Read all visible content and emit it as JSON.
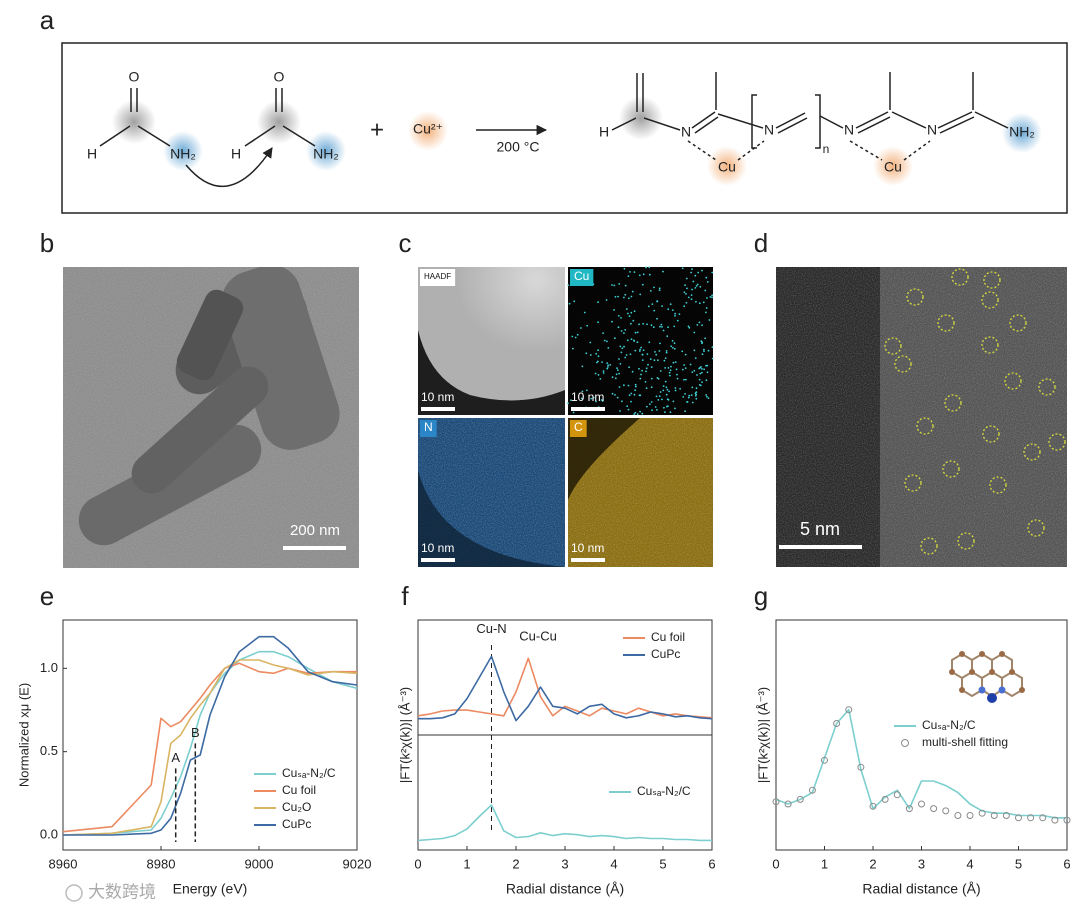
{
  "panel_labels": [
    "a",
    "b",
    "c",
    "d",
    "e",
    "f",
    "g"
  ],
  "scheme": {
    "labels": [
      "O",
      "H",
      "NH₂",
      "O",
      "H",
      "NH₂",
      "+",
      "Cu²⁺",
      "200 °C",
      "H",
      "N",
      "N",
      "n",
      "N",
      "N",
      "NH₂",
      "Cu",
      "Cu"
    ]
  },
  "tem": {
    "scale_bar": "200 nm"
  },
  "mapping": {
    "tiles": [
      {
        "label": "HAADF",
        "scale_bar": "10 nm"
      },
      {
        "label": "Cu",
        "scale_bar": "10 nm"
      },
      {
        "label": "N",
        "scale_bar": "10 nm"
      },
      {
        "label": "C",
        "scale_bar": "10 nm"
      }
    ]
  },
  "haadf": {
    "scale_bar": "5 nm"
  },
  "watermark": "大数跨境",
  "chart_data": [
    {
      "type": "line",
      "xlabel": "Energy (eV)",
      "ylabel": "Normalized xμ (E)",
      "x": [
        8960,
        8970,
        8978,
        8980,
        8982,
        8984,
        8986,
        8988,
        8990,
        8993,
        8996,
        9000,
        9003,
        9006,
        9010,
        9015,
        9020
      ],
      "xlim": [
        8960,
        9020
      ],
      "xticks": [
        8960,
        8980,
        9000,
        9020
      ],
      "ylim": [
        -0.09,
        1.29
      ],
      "yticks": [
        {
          "value": 0,
          "label": "0.0"
        },
        {
          "value": 0.5,
          "label": "0.5"
        },
        {
          "value": 1,
          "label": "1.0"
        }
      ],
      "legend": "lower right",
      "series": [
        {
          "name": "Cuₛₐ-N₂/C",
          "color": "#7dcfcf",
          "values": [
            0.0,
            0.01,
            0.03,
            0.1,
            0.22,
            0.35,
            0.52,
            0.72,
            0.85,
            0.97,
            1.05,
            1.1,
            1.1,
            1.07,
            1.0,
            0.92,
            0.88
          ]
        },
        {
          "name": "Cu foil",
          "color": "#ec8a62",
          "values": [
            0.02,
            0.05,
            0.3,
            0.7,
            0.65,
            0.68,
            0.75,
            0.82,
            0.9,
            1.0,
            1.03,
            0.98,
            0.97,
            1.0,
            0.97,
            0.98,
            0.98
          ]
        },
        {
          "name": "Cu₂O",
          "color": "#d9b564",
          "values": [
            0.0,
            0.01,
            0.05,
            0.2,
            0.55,
            0.6,
            0.7,
            0.78,
            0.85,
            1.0,
            1.05,
            1.05,
            1.02,
            1.0,
            0.96,
            0.98,
            0.97
          ]
        },
        {
          "name": "CuPc",
          "color": "#3d6aa3",
          "values": [
            0.0,
            0.0,
            0.01,
            0.03,
            0.1,
            0.25,
            0.45,
            0.48,
            0.72,
            0.95,
            1.1,
            1.19,
            1.19,
            1.12,
            0.98,
            0.92,
            0.9
          ]
        }
      ],
      "annotations": [
        {
          "text": "A",
          "x": 8983,
          "y": 0.46,
          "dashed": true
        },
        {
          "text": "B",
          "x": 8987,
          "y": 0.61,
          "dashed": true
        }
      ]
    },
    {
      "type": "line",
      "xlabel": "Radial distance (Å)",
      "ylabel": "|FT(k²χ(k))| (Å⁻³)",
      "x": [
        0,
        0.25,
        0.5,
        0.75,
        1,
        1.25,
        1.5,
        1.75,
        2,
        2.25,
        2.5,
        2.75,
        3,
        3.25,
        3.5,
        3.75,
        4,
        4.25,
        4.5,
        4.75,
        5,
        5.25,
        5.5,
        5.75,
        6
      ],
      "xlim": [
        0,
        6
      ],
      "xticks": [
        0,
        1,
        2,
        3,
        4,
        5,
        6
      ],
      "panels": [
        {
          "ylim": [
            0,
            1.2
          ],
          "legend": "upper right"
        },
        {
          "ylim": [
            0,
            1.2
          ],
          "legend": "center right"
        }
      ],
      "vline": 1.5,
      "series": [
        {
          "name": "Cu foil",
          "color": "#ec8a62",
          "panel": 0,
          "values": [
            0.2,
            0.22,
            0.25,
            0.26,
            0.26,
            0.24,
            0.22,
            0.2,
            0.45,
            0.8,
            0.4,
            0.2,
            0.3,
            0.25,
            0.2,
            0.28,
            0.25,
            0.22,
            0.28,
            0.24,
            0.2,
            0.22,
            0.2,
            0.19,
            0.18
          ]
        },
        {
          "name": "CuPc",
          "color": "#3d6aa3",
          "panel": 0,
          "values": [
            0.17,
            0.17,
            0.18,
            0.22,
            0.38,
            0.6,
            0.82,
            0.45,
            0.15,
            0.3,
            0.5,
            0.3,
            0.28,
            0.22,
            0.3,
            0.32,
            0.22,
            0.18,
            0.2,
            0.24,
            0.22,
            0.19,
            0.2,
            0.18,
            0.17
          ]
        },
        {
          "name": "Cuₛₐ-N₂/C",
          "color": "#7dcfcf",
          "panel": 1,
          "values": [
            0.1,
            0.11,
            0.12,
            0.15,
            0.22,
            0.35,
            0.47,
            0.2,
            0.13,
            0.14,
            0.18,
            0.15,
            0.17,
            0.16,
            0.14,
            0.15,
            0.14,
            0.12,
            0.13,
            0.12,
            0.12,
            0.11,
            0.11,
            0.1,
            0.1
          ]
        }
      ],
      "annotations": [
        {
          "text": "Cu-N",
          "x": 1.5,
          "y": 1.1
        },
        {
          "text": "Cu-Cu",
          "x": 2.45,
          "y": 1.02
        }
      ]
    },
    {
      "type": "line",
      "xlabel": "Radial distance (Å)",
      "ylabel": "|FT(k²χ(k))| (Å⁻³)",
      "x": [
        0,
        0.25,
        0.5,
        0.75,
        1,
        1.25,
        1.5,
        1.75,
        2,
        2.25,
        2.5,
        2.75,
        3,
        3.25,
        3.5,
        3.75,
        4,
        4.25,
        4.5,
        4.75,
        5,
        5.25,
        5.5,
        5.75,
        6
      ],
      "xlim": [
        0,
        6
      ],
      "xticks": [
        0,
        1,
        2,
        3,
        4,
        5,
        6
      ],
      "ylim": [
        0,
        1
      ],
      "legend": "center right",
      "series": [
        {
          "name": "Cuₛₐ-N₂/C",
          "color": "#7dcfcf",
          "values": [
            0.22,
            0.2,
            0.22,
            0.25,
            0.4,
            0.55,
            0.61,
            0.35,
            0.18,
            0.23,
            0.26,
            0.18,
            0.3,
            0.3,
            0.28,
            0.25,
            0.2,
            0.17,
            0.16,
            0.16,
            0.15,
            0.15,
            0.15,
            0.14,
            0.14
          ]
        },
        {
          "name": "multi-shell fitting",
          "color": "#8a8a8a",
          "marker": "circle",
          "values": [
            0.21,
            0.2,
            0.22,
            0.26,
            0.39,
            0.55,
            0.61,
            0.36,
            0.19,
            0.22,
            0.24,
            0.18,
            0.2,
            0.18,
            0.17,
            0.15,
            0.15,
            0.16,
            0.15,
            0.15,
            0.14,
            0.14,
            0.14,
            0.13,
            0.13
          ]
        }
      ]
    }
  ]
}
